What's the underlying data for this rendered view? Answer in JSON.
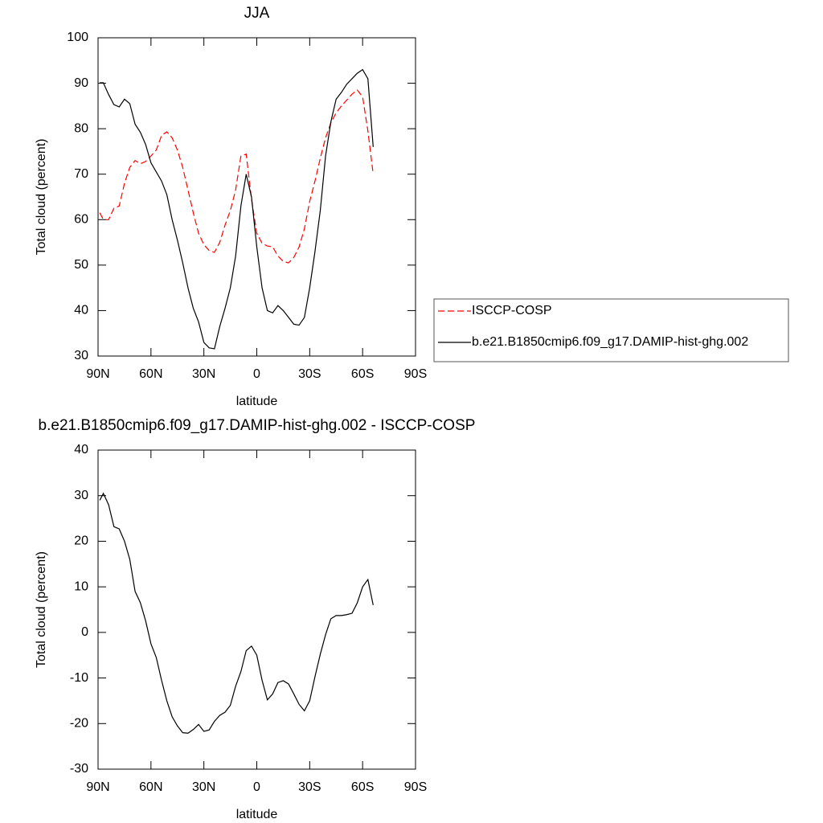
{
  "chart_data": [
    {
      "type": "line",
      "title": "JJA",
      "xlabel": "latitude",
      "ylabel": "Total cloud (percent)",
      "x": [
        89,
        87,
        84,
        81,
        78,
        75,
        72,
        69,
        66,
        63,
        60,
        57,
        54,
        51,
        48,
        45,
        42,
        39,
        36,
        33,
        30,
        27,
        24,
        21,
        18,
        15,
        12,
        9,
        6,
        3,
        0,
        -3,
        -6,
        -9,
        -12,
        -15,
        -18,
        -21,
        -24,
        -27,
        -30,
        -33,
        -36,
        -39,
        -42,
        -45,
        -48,
        -51,
        -54,
        -57,
        -60,
        -63,
        -66
      ],
      "series": [
        {
          "name": "ISCCP-COSP",
          "color": "#ff0000",
          "style": "dashed",
          "values": [
            61.5,
            60,
            60,
            62.5,
            63,
            68,
            71.5,
            73,
            72.3,
            72.8,
            74,
            75.3,
            78.5,
            79.3,
            78,
            75.3,
            71.5,
            66.5,
            61.5,
            57,
            54.5,
            53.2,
            52.8,
            55,
            58.8,
            62,
            66.5,
            74,
            74.4,
            64.5,
            57,
            54.8,
            54.2,
            54,
            52,
            50.8,
            50.5,
            51.7,
            54,
            58,
            64,
            68.5,
            73.5,
            78,
            81.3,
            83.5,
            85,
            86.3,
            87.6,
            88.5,
            87,
            79.5,
            70
          ]
        },
        {
          "name": "b.e21.B1850cmip6.f09_g17.DAMIP-hist-ghg.002",
          "color": "#000000",
          "style": "solid",
          "values": [
            90.1,
            90.1,
            87.5,
            85.3,
            84.8,
            86.5,
            85.5,
            81,
            79.2,
            76.5,
            72.5,
            70.5,
            68.5,
            65.5,
            60,
            55.5,
            50.5,
            45,
            40.5,
            37.5,
            33,
            31.8,
            31.6,
            36.5,
            40.5,
            45,
            52,
            63,
            70,
            65,
            54,
            45,
            40,
            39.5,
            41.1,
            40,
            38.5,
            37,
            36.8,
            38.5,
            45,
            53,
            62,
            74,
            81.5,
            86.5,
            88,
            89.8,
            91,
            92.2,
            93,
            91,
            76
          ]
        }
      ],
      "xlim": [
        90,
        -90
      ],
      "ylim": [
        30,
        100
      ],
      "xticks": [
        {
          "value": 90,
          "label": "90N"
        },
        {
          "value": 60,
          "label": "60N"
        },
        {
          "value": 30,
          "label": "30N"
        },
        0,
        {
          "value": -30,
          "label": "30S"
        },
        {
          "value": -60,
          "label": "60S"
        },
        {
          "value": -90,
          "label": "90S"
        }
      ],
      "yticks": [
        30,
        40,
        50,
        60,
        70,
        80,
        90,
        100
      ],
      "legend": "right"
    },
    {
      "type": "line",
      "title": "b.e21.B1850cmip6.f09_g17.DAMIP-hist-ghg.002 - ISCCP-COSP",
      "xlabel": "latitude",
      "ylabel": "Total cloud (percent)",
      "x": [
        89,
        87,
        84,
        81,
        78,
        75,
        72,
        69,
        66,
        63,
        60,
        57,
        54,
        51,
        48,
        45,
        42,
        39,
        36,
        33,
        30,
        27,
        24,
        21,
        18,
        15,
        12,
        9,
        6,
        3,
        0,
        -3,
        -6,
        -9,
        -12,
        -15,
        -18,
        -21,
        -24,
        -27,
        -30,
        -33,
        -36,
        -39,
        -42,
        -45,
        -48,
        -51,
        -54,
        -57,
        -60,
        -63,
        -66
      ],
      "series": [
        {
          "color": "#000000",
          "style": "solid",
          "values": [
            29,
            30.5,
            28,
            23.2,
            22.7,
            20,
            16,
            9,
            6.5,
            2.5,
            -2.5,
            -5.5,
            -10.5,
            -15,
            -18.5,
            -20.5,
            -22,
            -22.1,
            -21.3,
            -20.2,
            -21.7,
            -21.4,
            -19.5,
            -18.2,
            -17.5,
            -16,
            -11.8,
            -8.6,
            -4,
            -3,
            -5,
            -10.5,
            -14.8,
            -13.5,
            -11,
            -10.6,
            -11.3,
            -13.5,
            -15.8,
            -17.2,
            -15,
            -9.7,
            -4.8,
            -0.5,
            3,
            3.7,
            3.7,
            3.9,
            4.2,
            6.5,
            10,
            11.6,
            6
          ]
        }
      ],
      "xlim": [
        90,
        -90
      ],
      "ylim": [
        -30,
        40
      ],
      "xticks": [
        {
          "value": 90,
          "label": "90N"
        },
        {
          "value": 60,
          "label": "60N"
        },
        {
          "value": 30,
          "label": "30N"
        },
        0,
        {
          "value": -30,
          "label": "30S"
        },
        {
          "value": -60,
          "label": "60S"
        },
        {
          "value": -90,
          "label": "90S"
        }
      ],
      "yticks": [
        -30,
        -20,
        -10,
        0,
        10,
        20,
        30,
        40
      ]
    }
  ]
}
